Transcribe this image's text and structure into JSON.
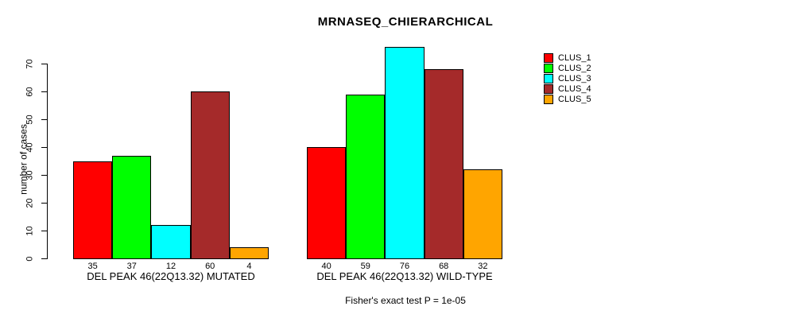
{
  "chart_data": {
    "type": "bar",
    "title": "MRNASEQ_CHIERARCHICAL",
    "ylabel": "number of cases",
    "xlabel": "",
    "caption": "Fisher's exact test P = 1e-05",
    "y_ticks": [
      0,
      10,
      20,
      30,
      40,
      50,
      60,
      70
    ],
    "ylim": [
      0,
      76
    ],
    "grid": false,
    "legend_position": "right-outside",
    "bar_value_labels_shown": true,
    "series": [
      {
        "name": "CLUS_1",
        "color": "#FF0000"
      },
      {
        "name": "CLUS_2",
        "color": "#00FF00"
      },
      {
        "name": "CLUS_3",
        "color": "#00FFFF"
      },
      {
        "name": "CLUS_4",
        "color": "#A52A2A"
      },
      {
        "name": "CLUS_5",
        "color": "#FFA500"
      }
    ],
    "groups": [
      {
        "label": "DEL PEAK 46(22Q13.32) MUTATED",
        "values": [
          35,
          37,
          12,
          60,
          4
        ]
      },
      {
        "label": "DEL PEAK 46(22Q13.32) WILD-TYPE",
        "values": [
          40,
          59,
          76,
          68,
          32
        ]
      }
    ]
  }
}
